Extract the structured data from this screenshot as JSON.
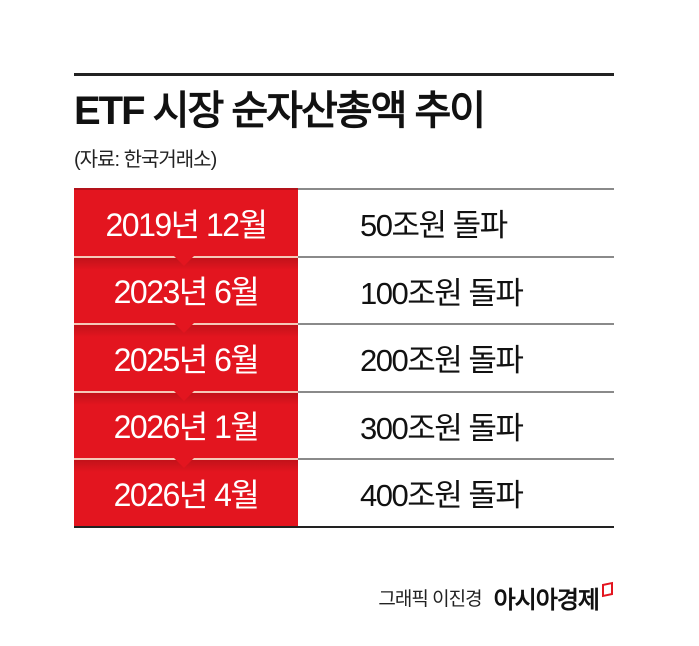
{
  "header": {
    "title": "ETF 시장 순자산총액 추이",
    "source": "(자료: 한국거래소)"
  },
  "timeline": [
    {
      "date": "2019년 12월",
      "milestone": "50조원 돌파"
    },
    {
      "date": "2023년 6월",
      "milestone": "100조원 돌파"
    },
    {
      "date": "2025년 6월",
      "milestone": "200조원 돌파"
    },
    {
      "date": "2026년 1월",
      "milestone": "300조원 돌파"
    },
    {
      "date": "2026년 4월",
      "milestone": "400조원 돌파"
    }
  ],
  "footer": {
    "credit": "그래픽 이진경",
    "brand": "아시아경제"
  },
  "colors": {
    "accent_red": "#e3151f",
    "text": "#111111"
  }
}
